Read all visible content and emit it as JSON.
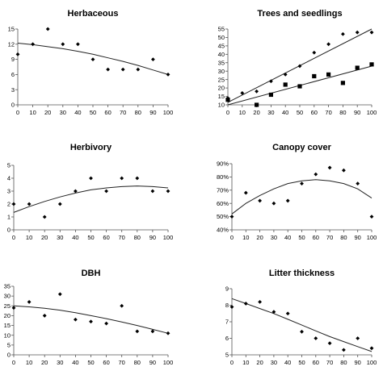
{
  "chart_data": [
    {
      "type": "scatter",
      "title": "Herbaceous",
      "xlim": [
        0,
        100
      ],
      "ylim": [
        0,
        15
      ],
      "xticks": [
        0,
        10,
        20,
        30,
        40,
        50,
        60,
        70,
        80,
        90,
        100
      ],
      "yticks": [
        0,
        3,
        6,
        9,
        12,
        15
      ],
      "grid": false,
      "series": [
        {
          "marker": "diamond",
          "x": [
            0,
            10,
            20,
            30,
            40,
            50,
            60,
            70,
            80,
            90,
            100
          ],
          "y": [
            10,
            12,
            15,
            12,
            12,
            9,
            7,
            7,
            7,
            9,
            6
          ]
        }
      ],
      "trendlines": [
        {
          "fit": "quadratic",
          "x": [
            0,
            10,
            20,
            30,
            40,
            50,
            60,
            70,
            80,
            90,
            100
          ],
          "y": [
            12.2,
            11.9,
            11.5,
            11.1,
            10.6,
            10.0,
            9.3,
            8.6,
            7.8,
            6.9,
            6.0
          ]
        }
      ]
    },
    {
      "type": "scatter",
      "title": "Trees and seedlings",
      "xlim": [
        0,
        100
      ],
      "ylim": [
        10,
        55
      ],
      "xticks": [
        0,
        10,
        20,
        30,
        40,
        50,
        60,
        70,
        80,
        90,
        100
      ],
      "yticks": [
        10,
        15,
        20,
        25,
        30,
        35,
        40,
        45,
        50,
        55
      ],
      "grid": false,
      "series": [
        {
          "marker": "diamond",
          "x": [
            0,
            10,
            20,
            30,
            40,
            50,
            60,
            70,
            80,
            90,
            100
          ],
          "y": [
            14,
            17,
            18,
            24,
            28,
            33,
            41,
            46,
            52,
            53,
            53
          ]
        },
        {
          "marker": "square",
          "x": [
            0,
            20,
            30,
            40,
            50,
            60,
            70,
            80,
            90,
            100
          ],
          "y": [
            13,
            10,
            16,
            22,
            21,
            27,
            28,
            23,
            32,
            34
          ]
        }
      ],
      "trendlines": [
        {
          "fit": "linear",
          "x": [
            0,
            100
          ],
          "y": [
            11.5,
            55
          ]
        },
        {
          "fit": "linear",
          "x": [
            0,
            100
          ],
          "y": [
            10,
            33
          ]
        }
      ]
    },
    {
      "type": "scatter",
      "title": "Herbivory",
      "xlim": [
        0,
        100
      ],
      "ylim": [
        0,
        5
      ],
      "xticks": [
        0,
        10,
        20,
        30,
        40,
        50,
        60,
        70,
        80,
        90,
        100
      ],
      "yticks": [
        0,
        1,
        2,
        3,
        4,
        5
      ],
      "grid": false,
      "series": [
        {
          "marker": "diamond",
          "x": [
            0,
            10,
            20,
            30,
            40,
            50,
            60,
            70,
            80,
            90,
            100
          ],
          "y": [
            2,
            2,
            1,
            2,
            3,
            4,
            3,
            4,
            4,
            3,
            3
          ]
        }
      ],
      "trendlines": [
        {
          "fit": "quadratic",
          "x": [
            0,
            10,
            20,
            30,
            40,
            50,
            60,
            70,
            80,
            90,
            100
          ],
          "y": [
            1.35,
            1.8,
            2.2,
            2.55,
            2.85,
            3.1,
            3.25,
            3.35,
            3.4,
            3.35,
            3.25
          ]
        }
      ]
    },
    {
      "type": "scatter",
      "title": "Canopy cover",
      "xlim": [
        0,
        100
      ],
      "ylim": [
        40,
        90
      ],
      "xticks": [
        0,
        10,
        20,
        30,
        40,
        50,
        60,
        70,
        80,
        90,
        100
      ],
      "yticks": [
        40,
        50,
        60,
        70,
        80,
        90
      ],
      "ytick_labels": [
        "40%",
        "50%",
        "60%",
        "70%",
        "80%",
        "90%"
      ],
      "grid": false,
      "series": [
        {
          "marker": "diamond",
          "x": [
            0,
            10,
            20,
            30,
            40,
            50,
            60,
            70,
            80,
            90,
            100
          ],
          "y": [
            50,
            68,
            62,
            60,
            62,
            75,
            82,
            87,
            85,
            75,
            50
          ]
        }
      ],
      "trendlines": [
        {
          "fit": "quadratic",
          "x": [
            0,
            10,
            20,
            30,
            40,
            50,
            60,
            70,
            80,
            90,
            100
          ],
          "y": [
            52,
            60,
            66,
            71,
            75,
            77,
            78,
            77,
            75,
            71,
            64
          ]
        }
      ]
    },
    {
      "type": "scatter",
      "title": "DBH",
      "xlim": [
        0,
        100
      ],
      "ylim": [
        0,
        35
      ],
      "xticks": [
        0,
        10,
        20,
        30,
        40,
        50,
        60,
        70,
        80,
        90,
        100
      ],
      "yticks": [
        0,
        5,
        10,
        15,
        20,
        25,
        30,
        35
      ],
      "grid": false,
      "series": [
        {
          "marker": "diamond",
          "x": [
            0,
            10,
            20,
            30,
            40,
            50,
            60,
            70,
            80,
            90,
            100
          ],
          "y": [
            24,
            27,
            20,
            31,
            18,
            17,
            16,
            25,
            12,
            12,
            11
          ]
        }
      ],
      "trendlines": [
        {
          "fit": "quadratic",
          "x": [
            0,
            10,
            20,
            30,
            40,
            50,
            60,
            70,
            80,
            90,
            100
          ],
          "y": [
            25,
            24.5,
            23.8,
            22.8,
            21.5,
            20.0,
            18.5,
            16.8,
            15.0,
            13.0,
            11.0
          ]
        }
      ]
    },
    {
      "type": "scatter",
      "title": "Litter thickness",
      "xlim": [
        0,
        100
      ],
      "ylim": [
        5,
        9
      ],
      "xticks": [
        0,
        10,
        20,
        30,
        40,
        50,
        60,
        70,
        80,
        90,
        100
      ],
      "yticks": [
        5,
        6,
        7,
        8,
        9
      ],
      "grid": false,
      "series": [
        {
          "marker": "diamond",
          "x": [
            0,
            10,
            20,
            30,
            40,
            50,
            60,
            70,
            80,
            90,
            100
          ],
          "y": [
            7.9,
            8.1,
            8.2,
            7.6,
            7.5,
            6.4,
            6.0,
            5.7,
            5.3,
            6.0,
            5.4
          ]
        }
      ],
      "trendlines": [
        {
          "fit": "quadratic",
          "x": [
            0,
            10,
            20,
            30,
            40,
            50,
            60,
            70,
            80,
            90,
            100
          ],
          "y": [
            8.4,
            8.1,
            7.8,
            7.5,
            7.15,
            6.8,
            6.45,
            6.1,
            5.8,
            5.5,
            5.2
          ]
        }
      ]
    }
  ]
}
